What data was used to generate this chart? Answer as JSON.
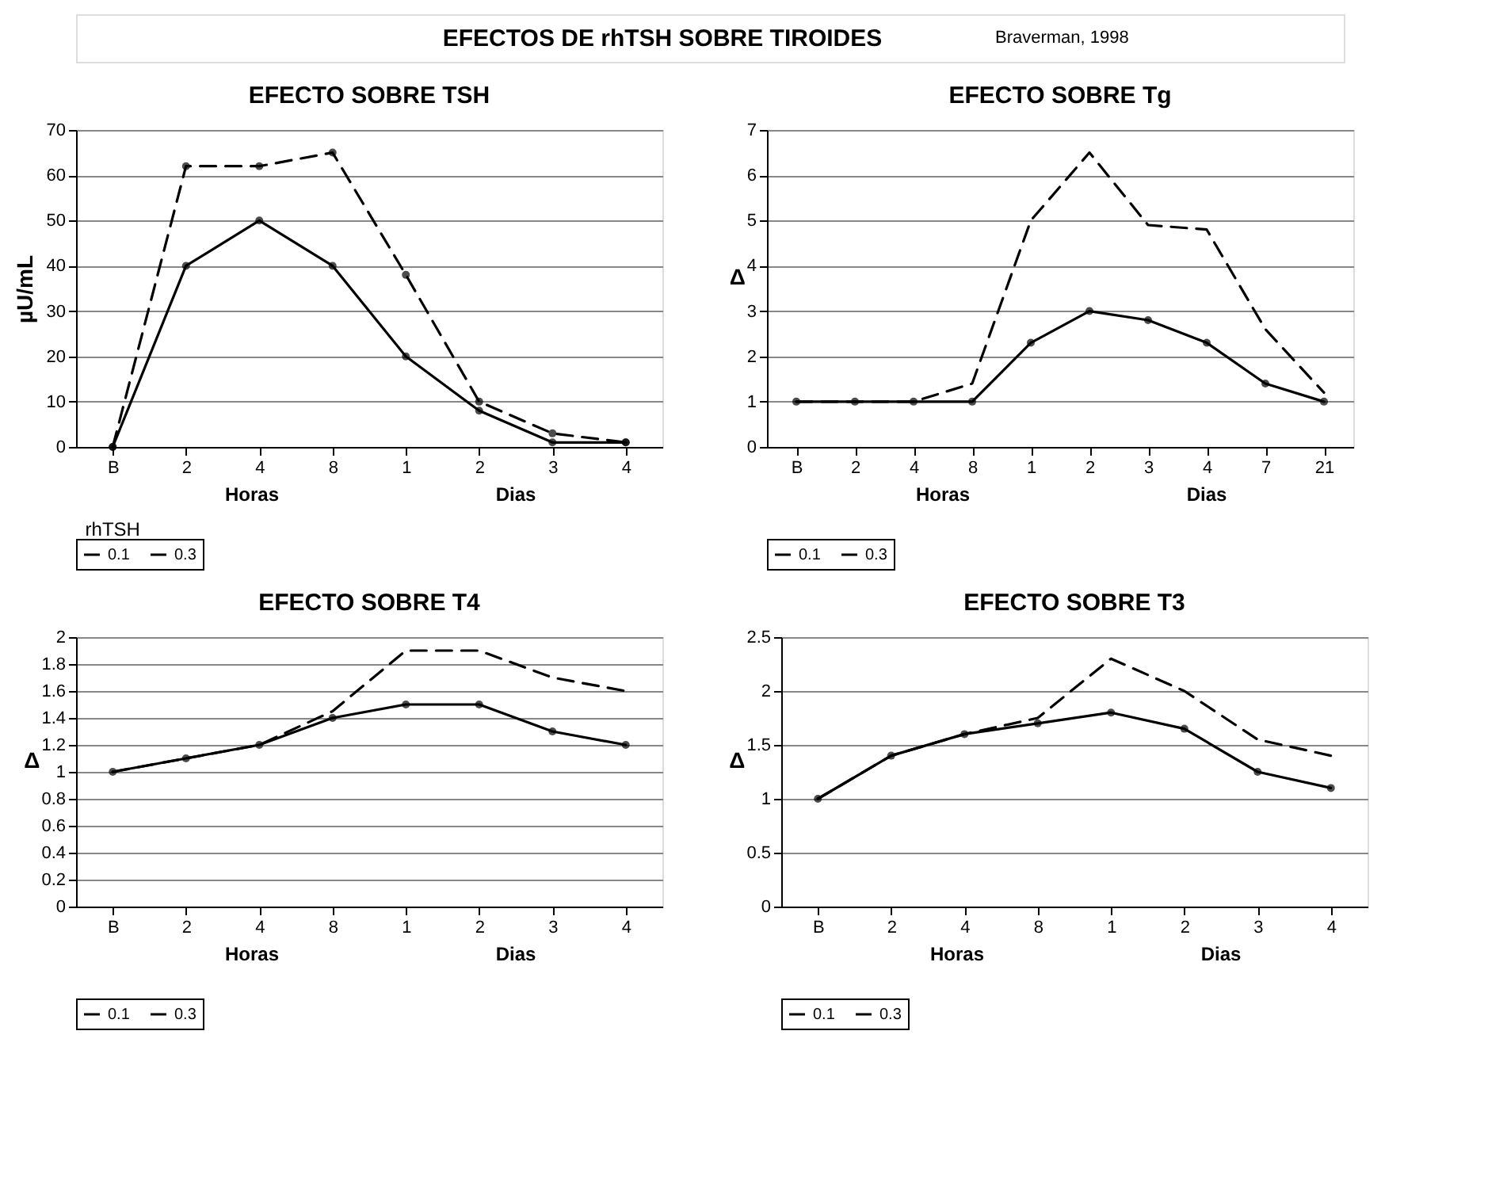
{
  "chart_data": [
    {
      "type": "other",
      "title": "EFECTOS DE rhTSH SOBRE TIROIDES",
      "annotations": [
        "Braverman, 1998"
      ]
    },
    {
      "type": "line",
      "title": "EFECTO SOBRE TSH",
      "ylabel": "µU/mL",
      "categories": [
        "B",
        "2",
        "4",
        "8",
        "1",
        "2",
        "3",
        "4"
      ],
      "ylim": [
        0,
        70
      ],
      "yticks": [
        0,
        10,
        20,
        30,
        40,
        50,
        60,
        70
      ],
      "grid": "y",
      "legend": "bottom",
      "annotations": [
        "Horas",
        "Dias",
        "rhTSH"
      ],
      "series": [
        {
          "name": "0.1",
          "color": "#000000",
          "line_style": "solid",
          "marker": "circle",
          "values": [
            0,
            40,
            50,
            40,
            20,
            8,
            1,
            1
          ]
        },
        {
          "name": "0.3",
          "color": "#000000",
          "line_style": "dashed",
          "marker": "circle",
          "values": [
            0,
            62,
            62,
            65,
            38,
            10,
            3,
            1
          ]
        }
      ]
    },
    {
      "type": "line",
      "title": "EFECTO SOBRE Tg",
      "ylabel": "Δ",
      "categories": [
        "B",
        "2",
        "4",
        "8",
        "1",
        "2",
        "3",
        "4",
        "7",
        "21"
      ],
      "ylim": [
        0,
        7
      ],
      "yticks": [
        0,
        1,
        2,
        3,
        4,
        5,
        6,
        7
      ],
      "grid": "y",
      "legend": "bottom",
      "annotations": [
        "Horas",
        "Dias"
      ],
      "series": [
        {
          "name": "0.1",
          "color": "#000000",
          "line_style": "solid",
          "marker": "circle",
          "values": [
            1,
            1,
            1,
            1,
            2.3,
            3,
            2.8,
            2.3,
            1.4,
            1
          ]
        },
        {
          "name": "0.3",
          "color": "#000000",
          "line_style": "dashed",
          "values": [
            1,
            1,
            1,
            1.4,
            5,
            6.5,
            4.9,
            4.8,
            2.6,
            1.2
          ]
        }
      ]
    },
    {
      "type": "line",
      "title": "EFECTO SOBRE T4",
      "ylabel": "Δ",
      "categories": [
        "B",
        "2",
        "4",
        "8",
        "1",
        "2",
        "3",
        "4"
      ],
      "ylim": [
        0,
        2
      ],
      "yticks": [
        0,
        0.2,
        0.4,
        0.6,
        0.8,
        1,
        1.2,
        1.4,
        1.6,
        1.8,
        2
      ],
      "grid": "y",
      "legend": "bottom",
      "annotations": [
        "Horas",
        "Dias"
      ],
      "series": [
        {
          "name": "0.1",
          "color": "#000000",
          "line_style": "solid",
          "marker": "circle",
          "values": [
            1,
            1.1,
            1.2,
            1.4,
            1.5,
            1.5,
            1.3,
            1.2
          ]
        },
        {
          "name": "0.3",
          "color": "#000000",
          "line_style": "dashed",
          "values": [
            1,
            1.1,
            1.2,
            1.45,
            1.9,
            1.9,
            1.7,
            1.6
          ]
        }
      ]
    },
    {
      "type": "line",
      "title": "EFECTO SOBRE T3",
      "ylabel": "Δ",
      "categories": [
        "B",
        "2",
        "4",
        "8",
        "1",
        "2",
        "3",
        "4"
      ],
      "ylim": [
        0,
        2.5
      ],
      "yticks": [
        0,
        0.5,
        1,
        1.5,
        2,
        2.5
      ],
      "grid": "y",
      "legend": "bottom",
      "annotations": [
        "Horas",
        "Dias"
      ],
      "series": [
        {
          "name": "0.1",
          "color": "#000000",
          "line_style": "solid",
          "marker": "circle",
          "values": [
            1,
            1.4,
            1.6,
            1.7,
            1.8,
            1.65,
            1.25,
            1.1
          ]
        },
        {
          "name": "0.3",
          "color": "#000000",
          "line_style": "dashed",
          "values": [
            1,
            1.4,
            1.6,
            1.75,
            2.3,
            2.0,
            1.55,
            1.4
          ]
        }
      ]
    }
  ]
}
